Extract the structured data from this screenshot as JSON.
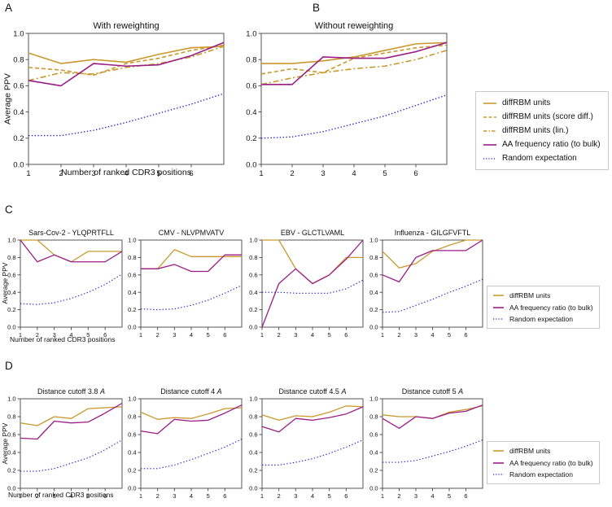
{
  "panel_labels": {
    "a": "A",
    "b": "B",
    "c": "C",
    "d": "D"
  },
  "labels": {
    "xlabel": "Number of ranked CDR3 positions",
    "ylabel": "Average PPV"
  },
  "colors": {
    "gold": "#c9992e",
    "purple": "#9a1d87",
    "blue": "#2121cc",
    "axis": "#444444",
    "legend_border": "#c9c9c9"
  },
  "legend_ab": [
    {
      "label": "diffRBM units",
      "color": "gold",
      "dash": "solid"
    },
    {
      "label": "diffRBM units (score diff.)",
      "color": "gold",
      "dash": "dashed"
    },
    {
      "label": "diffRBM units (lin.)",
      "color": "gold",
      "dash": "dashdot"
    },
    {
      "label": "AA frequency ratio (to bulk)",
      "color": "purple",
      "dash": "solid"
    },
    {
      "label": "Random expectation",
      "color": "blue",
      "dash": "dotted"
    }
  ],
  "legend_cd": [
    {
      "label": "diffRBM units",
      "color": "gold",
      "dash": "solid"
    },
    {
      "label": "AA frequency ratio (to bulk)",
      "color": "purple",
      "dash": "solid"
    },
    {
      "label": "Random expectation",
      "color": "blue",
      "dash": "dotted"
    }
  ],
  "axes": {
    "x": [
      1,
      2,
      3,
      4,
      5,
      6,
      7
    ],
    "xlim": [
      1,
      7
    ],
    "ylim": [
      0,
      1
    ],
    "xticks": [
      1,
      2,
      3,
      4,
      5,
      6
    ],
    "yticks": [
      "0.0",
      "0.2",
      "0.4",
      "0.6",
      "0.8",
      "1.0"
    ],
    "grid": false
  },
  "chart_data": [
    {
      "id": "A",
      "type": "line",
      "title": "With reweighting",
      "xlabel": "Number of ranked CDR3 positions",
      "ylabel": "Average PPV",
      "series": [
        {
          "name": "diffRBM units",
          "color": "gold",
          "dash": "solid",
          "values": [
            0.85,
            0.77,
            0.8,
            0.78,
            0.84,
            0.89,
            0.9
          ]
        },
        {
          "name": "diffRBM units (score diff.)",
          "color": "gold",
          "dash": "dashed",
          "values": [
            0.74,
            0.72,
            0.68,
            0.77,
            0.81,
            0.87,
            0.91
          ]
        },
        {
          "name": "diffRBM units (lin.)",
          "color": "gold",
          "dash": "dashdot",
          "values": [
            0.64,
            0.7,
            0.69,
            0.74,
            0.77,
            0.82,
            0.9
          ]
        },
        {
          "name": "AA frequency ratio (to bulk)",
          "color": "purple",
          "dash": "solid",
          "values": [
            0.64,
            0.6,
            0.77,
            0.75,
            0.76,
            0.83,
            0.93
          ]
        },
        {
          "name": "Random expectation",
          "color": "blue",
          "dash": "dotted",
          "values": [
            0.22,
            0.22,
            0.26,
            0.32,
            0.39,
            0.46,
            0.54
          ]
        }
      ]
    },
    {
      "id": "B",
      "type": "line",
      "title": "Without reweighting",
      "series": [
        {
          "name": "diffRBM units",
          "color": "gold",
          "dash": "solid",
          "values": [
            0.77,
            0.77,
            0.79,
            0.82,
            0.87,
            0.92,
            0.93
          ]
        },
        {
          "name": "diffRBM units (score diff.)",
          "color": "gold",
          "dash": "dashed",
          "values": [
            0.69,
            0.73,
            0.7,
            0.81,
            0.85,
            0.89,
            0.91
          ]
        },
        {
          "name": "diffRBM units (lin.)",
          "color": "gold",
          "dash": "dashdot",
          "values": [
            0.61,
            0.66,
            0.7,
            0.73,
            0.75,
            0.8,
            0.87
          ]
        },
        {
          "name": "AA frequency ratio (to bulk)",
          "color": "purple",
          "dash": "solid",
          "values": [
            0.61,
            0.61,
            0.82,
            0.81,
            0.81,
            0.86,
            0.93
          ]
        },
        {
          "name": "Random expectation",
          "color": "blue",
          "dash": "dotted",
          "values": [
            0.2,
            0.21,
            0.25,
            0.31,
            0.37,
            0.45,
            0.53
          ]
        }
      ]
    },
    {
      "id": "C1",
      "type": "line",
      "title": "Sars-Cov-2 - YLQPRTFLL",
      "series": [
        {
          "name": "diffRBM units",
          "color": "gold",
          "dash": "solid",
          "values": [
            1.0,
            1.0,
            0.83,
            0.75,
            0.87,
            0.87,
            0.87
          ]
        },
        {
          "name": "AA frequency ratio (to bulk)",
          "color": "purple",
          "dash": "solid",
          "values": [
            1.0,
            0.75,
            0.83,
            0.75,
            0.75,
            0.75,
            0.87
          ]
        },
        {
          "name": "Random expectation",
          "color": "blue",
          "dash": "dotted",
          "values": [
            0.27,
            0.26,
            0.28,
            0.33,
            0.4,
            0.49,
            0.61
          ]
        }
      ]
    },
    {
      "id": "C2",
      "type": "line",
      "title": "CMV - NLVPMVATV",
      "series": [
        {
          "name": "diffRBM units",
          "color": "gold",
          "dash": "solid",
          "values": [
            0.67,
            0.67,
            0.89,
            0.81,
            0.81,
            0.81,
            0.81
          ]
        },
        {
          "name": "AA frequency ratio (to bulk)",
          "color": "purple",
          "dash": "solid",
          "values": [
            0.67,
            0.67,
            0.72,
            0.64,
            0.64,
            0.83,
            0.83
          ]
        },
        {
          "name": "Random expectation",
          "color": "blue",
          "dash": "dotted",
          "values": [
            0.21,
            0.2,
            0.21,
            0.25,
            0.31,
            0.39,
            0.48
          ]
        }
      ]
    },
    {
      "id": "C3",
      "type": "line",
      "title": "EBV - GLCTLVAML",
      "series": [
        {
          "name": "diffRBM units",
          "color": "gold",
          "dash": "solid",
          "values": [
            1.0,
            1.0,
            0.67,
            0.5,
            0.6,
            0.8,
            0.8
          ]
        },
        {
          "name": "AA frequency ratio (to bulk)",
          "color": "purple",
          "dash": "solid",
          "values": [
            0.0,
            0.5,
            0.67,
            0.5,
            0.6,
            0.78,
            1.0
          ]
        },
        {
          "name": "Random expectation",
          "color": "blue",
          "dash": "dotted",
          "values": [
            0.4,
            0.4,
            0.39,
            0.39,
            0.39,
            0.44,
            0.54
          ]
        }
      ]
    },
    {
      "id": "C4",
      "type": "line",
      "title": "Influenza - GILGFVFTL",
      "series": [
        {
          "name": "diffRBM units",
          "color": "gold",
          "dash": "solid",
          "values": [
            0.87,
            0.68,
            0.73,
            0.87,
            0.94,
            1.0,
            1.0
          ]
        },
        {
          "name": "AA frequency ratio (to bulk)",
          "color": "purple",
          "dash": "solid",
          "values": [
            0.6,
            0.52,
            0.8,
            0.88,
            0.88,
            0.88,
            1.0
          ]
        },
        {
          "name": "Random expectation",
          "color": "blue",
          "dash": "dotted",
          "values": [
            0.17,
            0.18,
            0.25,
            0.32,
            0.4,
            0.47,
            0.55
          ]
        }
      ]
    },
    {
      "id": "D1",
      "type": "line",
      "title": "Distance cutoff 3.8 ",
      "title_italic": "A",
      "series": [
        {
          "name": "diffRBM units",
          "color": "gold",
          "dash": "solid",
          "values": [
            0.73,
            0.7,
            0.8,
            0.78,
            0.89,
            0.9,
            0.91
          ]
        },
        {
          "name": "AA frequency ratio (to bulk)",
          "color": "purple",
          "dash": "solid",
          "values": [
            0.56,
            0.55,
            0.75,
            0.73,
            0.74,
            0.84,
            0.95
          ]
        },
        {
          "name": "Random expectation",
          "color": "blue",
          "dash": "dotted",
          "values": [
            0.19,
            0.19,
            0.22,
            0.28,
            0.34,
            0.43,
            0.54
          ]
        }
      ]
    },
    {
      "id": "D2",
      "type": "line",
      "title": "Distance cutoff 4 ",
      "title_italic": "A",
      "series": [
        {
          "name": "diffRBM units",
          "color": "gold",
          "dash": "solid",
          "values": [
            0.85,
            0.77,
            0.79,
            0.78,
            0.83,
            0.89,
            0.9
          ]
        },
        {
          "name": "AA frequency ratio (to bulk)",
          "color": "purple",
          "dash": "solid",
          "values": [
            0.64,
            0.61,
            0.77,
            0.75,
            0.76,
            0.84,
            0.93
          ]
        },
        {
          "name": "Random expectation",
          "color": "blue",
          "dash": "dotted",
          "values": [
            0.22,
            0.22,
            0.26,
            0.32,
            0.39,
            0.46,
            0.55
          ]
        }
      ]
    },
    {
      "id": "D3",
      "type": "line",
      "title": "Distance cutoff 4.5 ",
      "title_italic": "A",
      "series": [
        {
          "name": "diffRBM units",
          "color": "gold",
          "dash": "solid",
          "values": [
            0.82,
            0.76,
            0.81,
            0.8,
            0.85,
            0.92,
            0.91
          ]
        },
        {
          "name": "AA frequency ratio (to bulk)",
          "color": "purple",
          "dash": "solid",
          "values": [
            0.69,
            0.63,
            0.78,
            0.76,
            0.79,
            0.83,
            0.91
          ]
        },
        {
          "name": "Random expectation",
          "color": "blue",
          "dash": "dotted",
          "values": [
            0.26,
            0.26,
            0.29,
            0.33,
            0.39,
            0.46,
            0.54
          ]
        }
      ]
    },
    {
      "id": "D4",
      "type": "line",
      "title": "Distance cutoff 5 ",
      "title_italic": "A",
      "series": [
        {
          "name": "diffRBM units",
          "color": "gold",
          "dash": "solid",
          "values": [
            0.82,
            0.8,
            0.8,
            0.78,
            0.85,
            0.88,
            0.92
          ]
        },
        {
          "name": "AA frequency ratio (to bulk)",
          "color": "purple",
          "dash": "solid",
          "values": [
            0.78,
            0.67,
            0.8,
            0.78,
            0.84,
            0.86,
            0.93
          ]
        },
        {
          "name": "Random expectation",
          "color": "blue",
          "dash": "dotted",
          "values": [
            0.29,
            0.29,
            0.31,
            0.36,
            0.41,
            0.47,
            0.54
          ]
        }
      ]
    }
  ]
}
